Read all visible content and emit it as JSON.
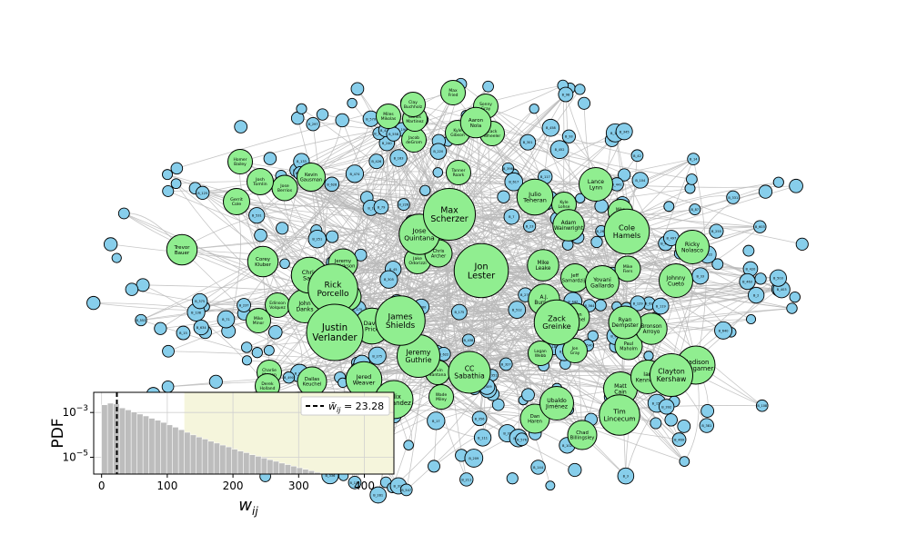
{
  "colors": {
    "pitcher_node": "#90ee90",
    "batter_node": "#87ceeb",
    "edge": "#b8b8b8",
    "node_stroke": "#000000",
    "inset_bar": "#bdbdbd",
    "inset_shade": "#f5f5dc",
    "mean_line": "#000000"
  },
  "network": {
    "pitchers": [
      {
        "label": "Justin\nVerlander",
        "size": 10
      },
      {
        "label": "Jon\nLester",
        "size": 9.5
      },
      {
        "label": "Max\nScherzer",
        "size": 9
      },
      {
        "label": "Rick\nPorcello",
        "size": 8.5
      },
      {
        "label": "James\nShields",
        "size": 8.5
      },
      {
        "label": "Zack\nGreinke",
        "size": 7.5
      },
      {
        "label": "Cole\nHamels",
        "size": 7.5
      },
      {
        "label": "Clayton\nKershaw",
        "size": 7
      },
      {
        "label": "Jeremy\nGuthrie",
        "size": 7
      },
      {
        "label": "CC\nSabathia",
        "size": 6.8
      },
      {
        "label": "Jose\nQuintana",
        "size": 6.5
      },
      {
        "label": "Tim\nLincecum",
        "size": 6.5
      },
      {
        "label": "Madison\nBumgarner",
        "size": 6
      },
      {
        "label": "Julio\nTeheran",
        "size": 5.5
      },
      {
        "label": "Chris\nSale",
        "size": 5.5
      },
      {
        "label": "John\nDanks",
        "size": 5
      },
      {
        "label": "David\nPrice",
        "size": 5.5
      },
      {
        "label": "Jered\nWeaver",
        "size": 5.5
      },
      {
        "label": "Felix\nHernandez",
        "size": 6
      },
      {
        "label": "Matt\nCain",
        "size": 5
      },
      {
        "label": "Ubaldo\nJiménez",
        "size": 5
      },
      {
        "label": "Ian\nKennedy",
        "size": 5
      },
      {
        "label": "Johnny\nCueto",
        "size": 5
      },
      {
        "label": "Ricky\nNolasco",
        "size": 5
      },
      {
        "label": "Lance\nLynn",
        "size": 5
      },
      {
        "label": "Yovani\nGallardo",
        "size": 5
      },
      {
        "label": "Ryan\nDempster",
        "size": 4.8
      },
      {
        "label": "Bronson\nArroyo",
        "size": 4.5
      },
      {
        "label": "Mike\nLeake",
        "size": 4.5
      },
      {
        "label": "A.J.\nBurnett",
        "size": 4.5
      },
      {
        "label": "Adam\nWainwright",
        "size": 4.5
      },
      {
        "label": "Aaron\nNola",
        "size": 4.3
      },
      {
        "label": "Corey\nKluber",
        "size": 4.3
      },
      {
        "label": "Trevor\nBauer",
        "size": 4.3
      },
      {
        "label": "Dan\nHaren",
        "size": 4
      },
      {
        "label": "Chad\nBillingsley",
        "size": 4
      },
      {
        "label": "Jeremy\nHellickson",
        "size": 4
      },
      {
        "label": "Dallas\nKeuchel",
        "size": 4
      },
      {
        "label": "Kevin\nGausman",
        "size": 3.8
      },
      {
        "label": "Jeff\nSamardzija",
        "size": 3.8
      },
      {
        "label": "Paul\nMaholm",
        "size": 3.6
      },
      {
        "label": "Jason\nHammel",
        "size": 3.6
      },
      {
        "label": "Matt\nGarza",
        "size": 3.6
      },
      {
        "label": "Chris\nArcher",
        "size": 3.6
      },
      {
        "label": "Jake\nOdorizzi",
        "size": 3.4
      },
      {
        "label": "Gerrit\nCole",
        "size": 3.4
      },
      {
        "label": "Josh\nTomlin",
        "size": 3.4
      },
      {
        "label": "Jose\nBerrios",
        "size": 3.2
      },
      {
        "label": "Mike\nFiers",
        "size": 3.2
      },
      {
        "label": "Max\nFried",
        "size": 3
      },
      {
        "label": "Sonny\nGray",
        "size": 3
      },
      {
        "label": "Zack\nWheeler",
        "size": 3
      },
      {
        "label": "Mike\nPelfrey",
        "size": 3
      },
      {
        "label": "Kyle\nLohse",
        "size": 3
      },
      {
        "label": "Miles\nMikolas",
        "size": 3
      },
      {
        "label": "Jacob\ndeGrom",
        "size": 3
      },
      {
        "label": "Tanner\nRoark",
        "size": 3
      },
      {
        "label": "Kyle\nGibson",
        "size": 3
      },
      {
        "label": "Carlos\nMartinez",
        "size": 3
      },
      {
        "label": "Jon\nGray",
        "size": 3
      },
      {
        "label": "Logan\nWebb",
        "size": 3
      },
      {
        "label": "Wade\nMiley",
        "size": 3
      },
      {
        "label": "Ervin\nSantana",
        "size": 3
      },
      {
        "label": "Mike\nMinor",
        "size": 3
      },
      {
        "label": "Charlie\nMorton",
        "size": 3
      },
      {
        "label": "Derek\nHolland",
        "size": 3
      },
      {
        "label": "Edinson\nVolquez",
        "size": 3
      },
      {
        "label": "Homer\nBailey",
        "size": 3
      },
      {
        "label": "Clay\nBuchholz",
        "size": 3
      }
    ],
    "batters": [
      "B_1",
      "B_2",
      "B_3",
      "B_5",
      "B_7",
      "B_12",
      "B_14",
      "B_15",
      "B_17",
      "B_21",
      "B_23",
      "B_28",
      "B_33",
      "B_39",
      "B_40",
      "B_42",
      "B_45",
      "B_48",
      "B_51",
      "B_57",
      "B_60",
      "B_62",
      "B_66",
      "B_71",
      "B_74",
      "B_76",
      "B_79",
      "B_81",
      "B_87",
      "B_88",
      "B_93",
      "B_98",
      "B_102",
      "B_104",
      "B_108",
      "B_111",
      "B_113",
      "B_117",
      "B_119",
      "B_122",
      "B_125",
      "B_129",
      "B_133",
      "B_138",
      "B_140",
      "B_144",
      "B_150",
      "B_155",
      "B_158",
      "B_163",
      "B_167",
      "B_170",
      "B_175",
      "B_180",
      "B_186",
      "B_190",
      "B_194",
      "B_199",
      "B_205",
      "B_209",
      "B_211",
      "B_216",
      "B_220",
      "B_226",
      "B_230",
      "B_237",
      "B_240",
      "B_245",
      "B_251",
      "B_255",
      "B_262",
      "B_268",
      "B_270",
      "B_275",
      "B_281",
      "B_290",
      "B_297",
      "B_301",
      "B_305",
      "B_312",
      "B_318",
      "B_322",
      "B_327",
      "B_331",
      "B_336",
      "B_340",
      "B_345",
      "B_351",
      "B_356",
      "B_362",
      "B_367",
      "B_370",
      "B_375",
      "B_381",
      "B_388",
      "B_392",
      "B_398",
      "B_403",
      "B_409",
      "B_415",
      "B_420",
      "B_426",
      "B_432",
      "B_438",
      "B_441",
      "B_447",
      "B_452",
      "B_458",
      "B_463",
      "B_469",
      "B_474",
      "B_480",
      "B_486",
      "B_490",
      "B_497",
      "B_503",
      "B_509",
      "B_512",
      "B_518",
      "B_524",
      "B_531",
      "B_536",
      "B_540",
      "B_547",
      "B_553",
      "B_558",
      "B_564",
      "B_570",
      "B_576",
      "B_581",
      "B_587",
      "B_593",
      "B_598",
      "B_603",
      "B_610",
      "B_617",
      "B_622",
      "B_628",
      "B_634",
      "B_640"
    ]
  },
  "inset": {
    "ylabel": "PDF",
    "xlabel_base": "w",
    "xlabel_sub": "ij",
    "x_ticks": [
      "0",
      "100",
      "200",
      "300",
      "400"
    ],
    "y_ticks": [
      {
        "base": "10",
        "exp": "−3",
        "value": 0.001
      },
      {
        "base": "10",
        "exp": "−5",
        "value": 1e-05
      }
    ],
    "legend": "w̄_ij = 23.28",
    "legend_lhs": "w̄",
    "legend_sub": "ij",
    "legend_rhs": "= 23.28",
    "mean_value": 23.28,
    "shade_start": 126,
    "xlim": [
      -12,
      445
    ],
    "ylim_log": [
      -5.75,
      -2.1
    ],
    "bin_width": 9,
    "hist": [
      {
        "x": 0,
        "pdf": 0.0022
      },
      {
        "x": 9,
        "pdf": 0.0026
      },
      {
        "x": 18,
        "pdf": 0.0024
      },
      {
        "x": 27,
        "pdf": 0.0016
      },
      {
        "x": 36,
        "pdf": 0.0013
      },
      {
        "x": 45,
        "pdf": 0.00105
      },
      {
        "x": 54,
        "pdf": 0.00085
      },
      {
        "x": 63,
        "pdf": 0.0007
      },
      {
        "x": 72,
        "pdf": 0.00055
      },
      {
        "x": 81,
        "pdf": 0.00045
      },
      {
        "x": 90,
        "pdf": 0.00036
      },
      {
        "x": 99,
        "pdf": 0.00028
      },
      {
        "x": 108,
        "pdf": 0.00022
      },
      {
        "x": 117,
        "pdf": 0.00017
      },
      {
        "x": 126,
        "pdf": 0.00013
      },
      {
        "x": 135,
        "pdf": 0.0001
      },
      {
        "x": 144,
        "pdf": 8e-05
      },
      {
        "x": 153,
        "pdf": 6.5e-05
      },
      {
        "x": 162,
        "pdf": 5.2e-05
      },
      {
        "x": 171,
        "pdf": 4.3e-05
      },
      {
        "x": 180,
        "pdf": 3.5e-05
      },
      {
        "x": 189,
        "pdf": 2.9e-05
      },
      {
        "x": 198,
        "pdf": 2.3e-05
      },
      {
        "x": 207,
        "pdf": 1.9e-05
      },
      {
        "x": 216,
        "pdf": 1.6e-05
      },
      {
        "x": 225,
        "pdf": 1.3e-05
      },
      {
        "x": 234,
        "pdf": 1.1e-05
      },
      {
        "x": 243,
        "pdf": 9.2e-06
      },
      {
        "x": 252,
        "pdf": 7.8e-06
      },
      {
        "x": 261,
        "pdf": 6.6e-06
      },
      {
        "x": 270,
        "pdf": 5.5e-06
      },
      {
        "x": 279,
        "pdf": 4.7e-06
      },
      {
        "x": 288,
        "pdf": 4e-06
      },
      {
        "x": 297,
        "pdf": 3.4e-06
      },
      {
        "x": 306,
        "pdf": 2.9e-06
      },
      {
        "x": 315,
        "pdf": 2.5e-06
      },
      {
        "x": 324,
        "pdf": 2.1e-06
      },
      {
        "x": 333,
        "pdf": 1.8e-06
      },
      {
        "x": 342,
        "pdf": 1.6e-06
      },
      {
        "x": 351,
        "pdf": 1.4e-06
      },
      {
        "x": 360,
        "pdf": 1.2e-06
      },
      {
        "x": 369,
        "pdf": 1.1e-06
      },
      {
        "x": 378,
        "pdf": 1e-06
      },
      {
        "x": 387,
        "pdf": 9e-07
      },
      {
        "x": 396,
        "pdf": 8e-07
      },
      {
        "x": 405,
        "pdf": 7e-07
      },
      {
        "x": 414,
        "pdf": 6.5e-07
      }
    ]
  }
}
